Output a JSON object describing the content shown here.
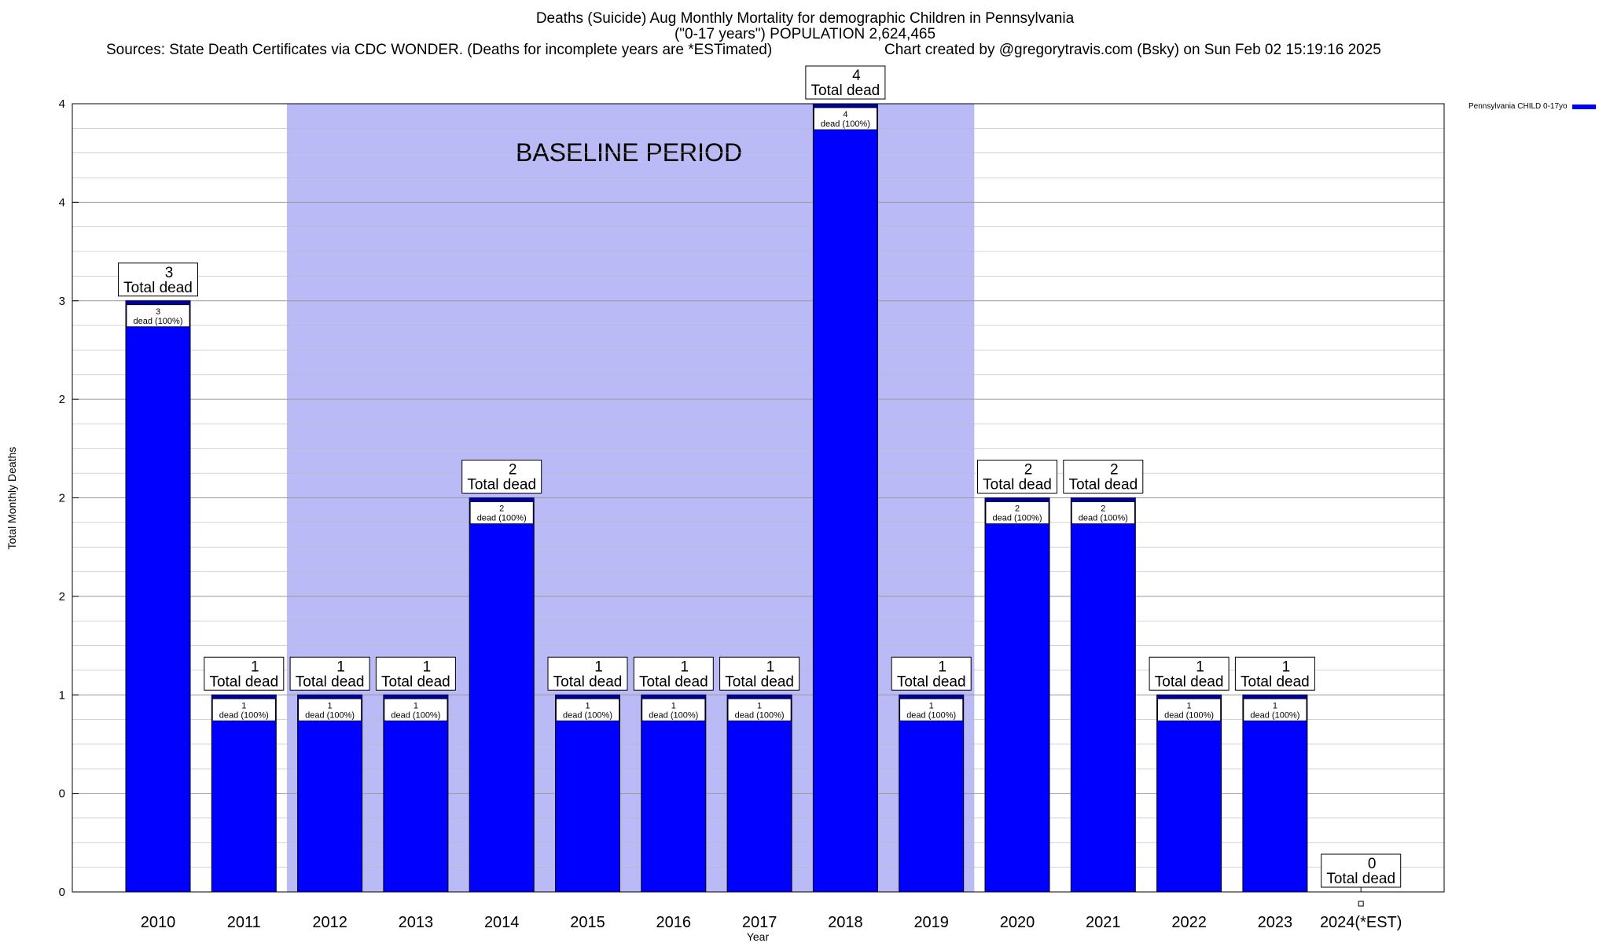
{
  "header": {
    "title": "Deaths (Suicide) Aug Monthly Mortality for demographic Children in Pennsylvania",
    "subtitle": "(\"0-17 years\") POPULATION 2,624,465",
    "sources": "Sources: State Death Certificates via CDC WONDER. (Deaths for incomplete years are *ESTimated)",
    "credit": "Chart created by @gregorytravis.com (Bsky) on Sun Feb 02 15:19:16 2025"
  },
  "legend": {
    "label": "Pennsylvania CHILD 0-17yo"
  },
  "chart_data": {
    "type": "bar",
    "xlabel": "Year",
    "ylabel": "Total Monthly Deaths",
    "ylim": [
      0,
      4
    ],
    "y_tick_labels": [
      "0",
      "0",
      "1",
      "2",
      "2",
      "2",
      "3",
      "4",
      "4"
    ],
    "grid": true,
    "categories": [
      "2010",
      "2011",
      "2012",
      "2013",
      "2014",
      "2015",
      "2016",
      "2017",
      "2018",
      "2019",
      "2020",
      "2021",
      "2022",
      "2023",
      "2024(*EST)"
    ],
    "series": [
      {
        "name": "Pennsylvania CHILD 0-17yo",
        "values": [
          3,
          1,
          1,
          1,
          2,
          1,
          1,
          1,
          4,
          1,
          2,
          2,
          1,
          1,
          0
        ]
      }
    ],
    "total_label_suffix": "Total dead",
    "inner_label_suffix": "dead (100%)",
    "baseline": {
      "label": "BASELINE PERIOD",
      "from": "2012",
      "to": "2019"
    },
    "colors": {
      "bar": "#0000ff",
      "bar_top": "#00009a",
      "baseline": "#babaf7",
      "grid": "#bbbbbb"
    }
  }
}
